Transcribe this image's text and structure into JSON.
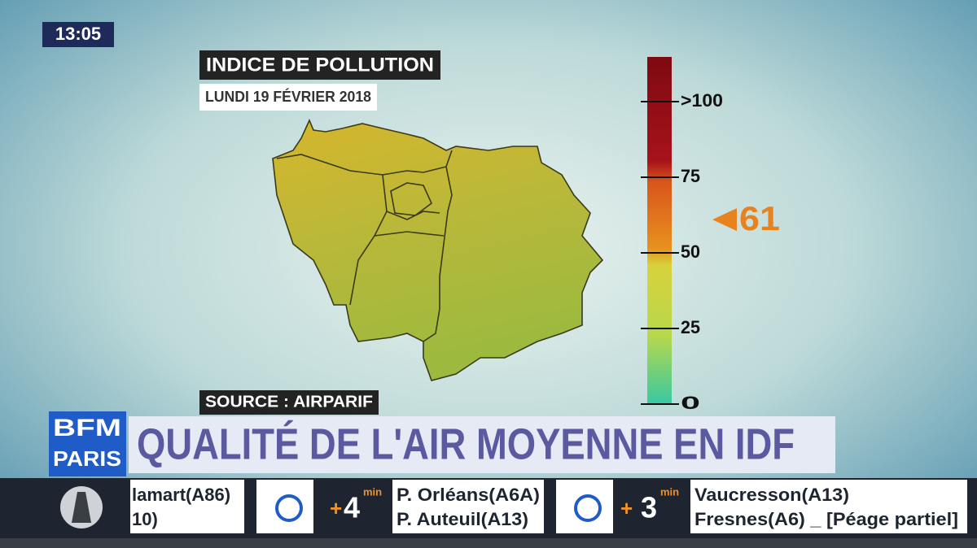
{
  "clock": "13:05",
  "header": {
    "title": "INDICE DE POLLUTION",
    "date": "LUNDI 19 FÉVRIER 2018"
  },
  "chart_data": {
    "type": "gauge",
    "yticks": [
      0,
      25,
      50,
      75,
      {
        "value": 100,
        "label": ">100"
      }
    ],
    "value": 61,
    "color": "#e8821e"
  },
  "source": "SOURCE : AIRPARIF",
  "banner": {
    "logo": [
      "BFM",
      "PARIS"
    ],
    "title": "QUALITÉ DE L'AIR MOYENNE EN IDF"
  },
  "ticker": {
    "segments": [
      {
        "lines": [
          "lamart(A86)",
          "10)"
        ]
      },
      {
        "delay": {
          "sign": "+",
          "minutes": "4",
          "unit": "min"
        },
        "lines": [
          "P. Orléans(A6A)",
          "P. Auteuil(A13)"
        ]
      },
      {
        "delay": {
          "sign": "+",
          "minutes": "3",
          "unit": "min"
        },
        "lines": [
          "Vaucresson(A13)",
          "Fresnes(A6) _ [Péage partiel]"
        ]
      }
    ]
  }
}
